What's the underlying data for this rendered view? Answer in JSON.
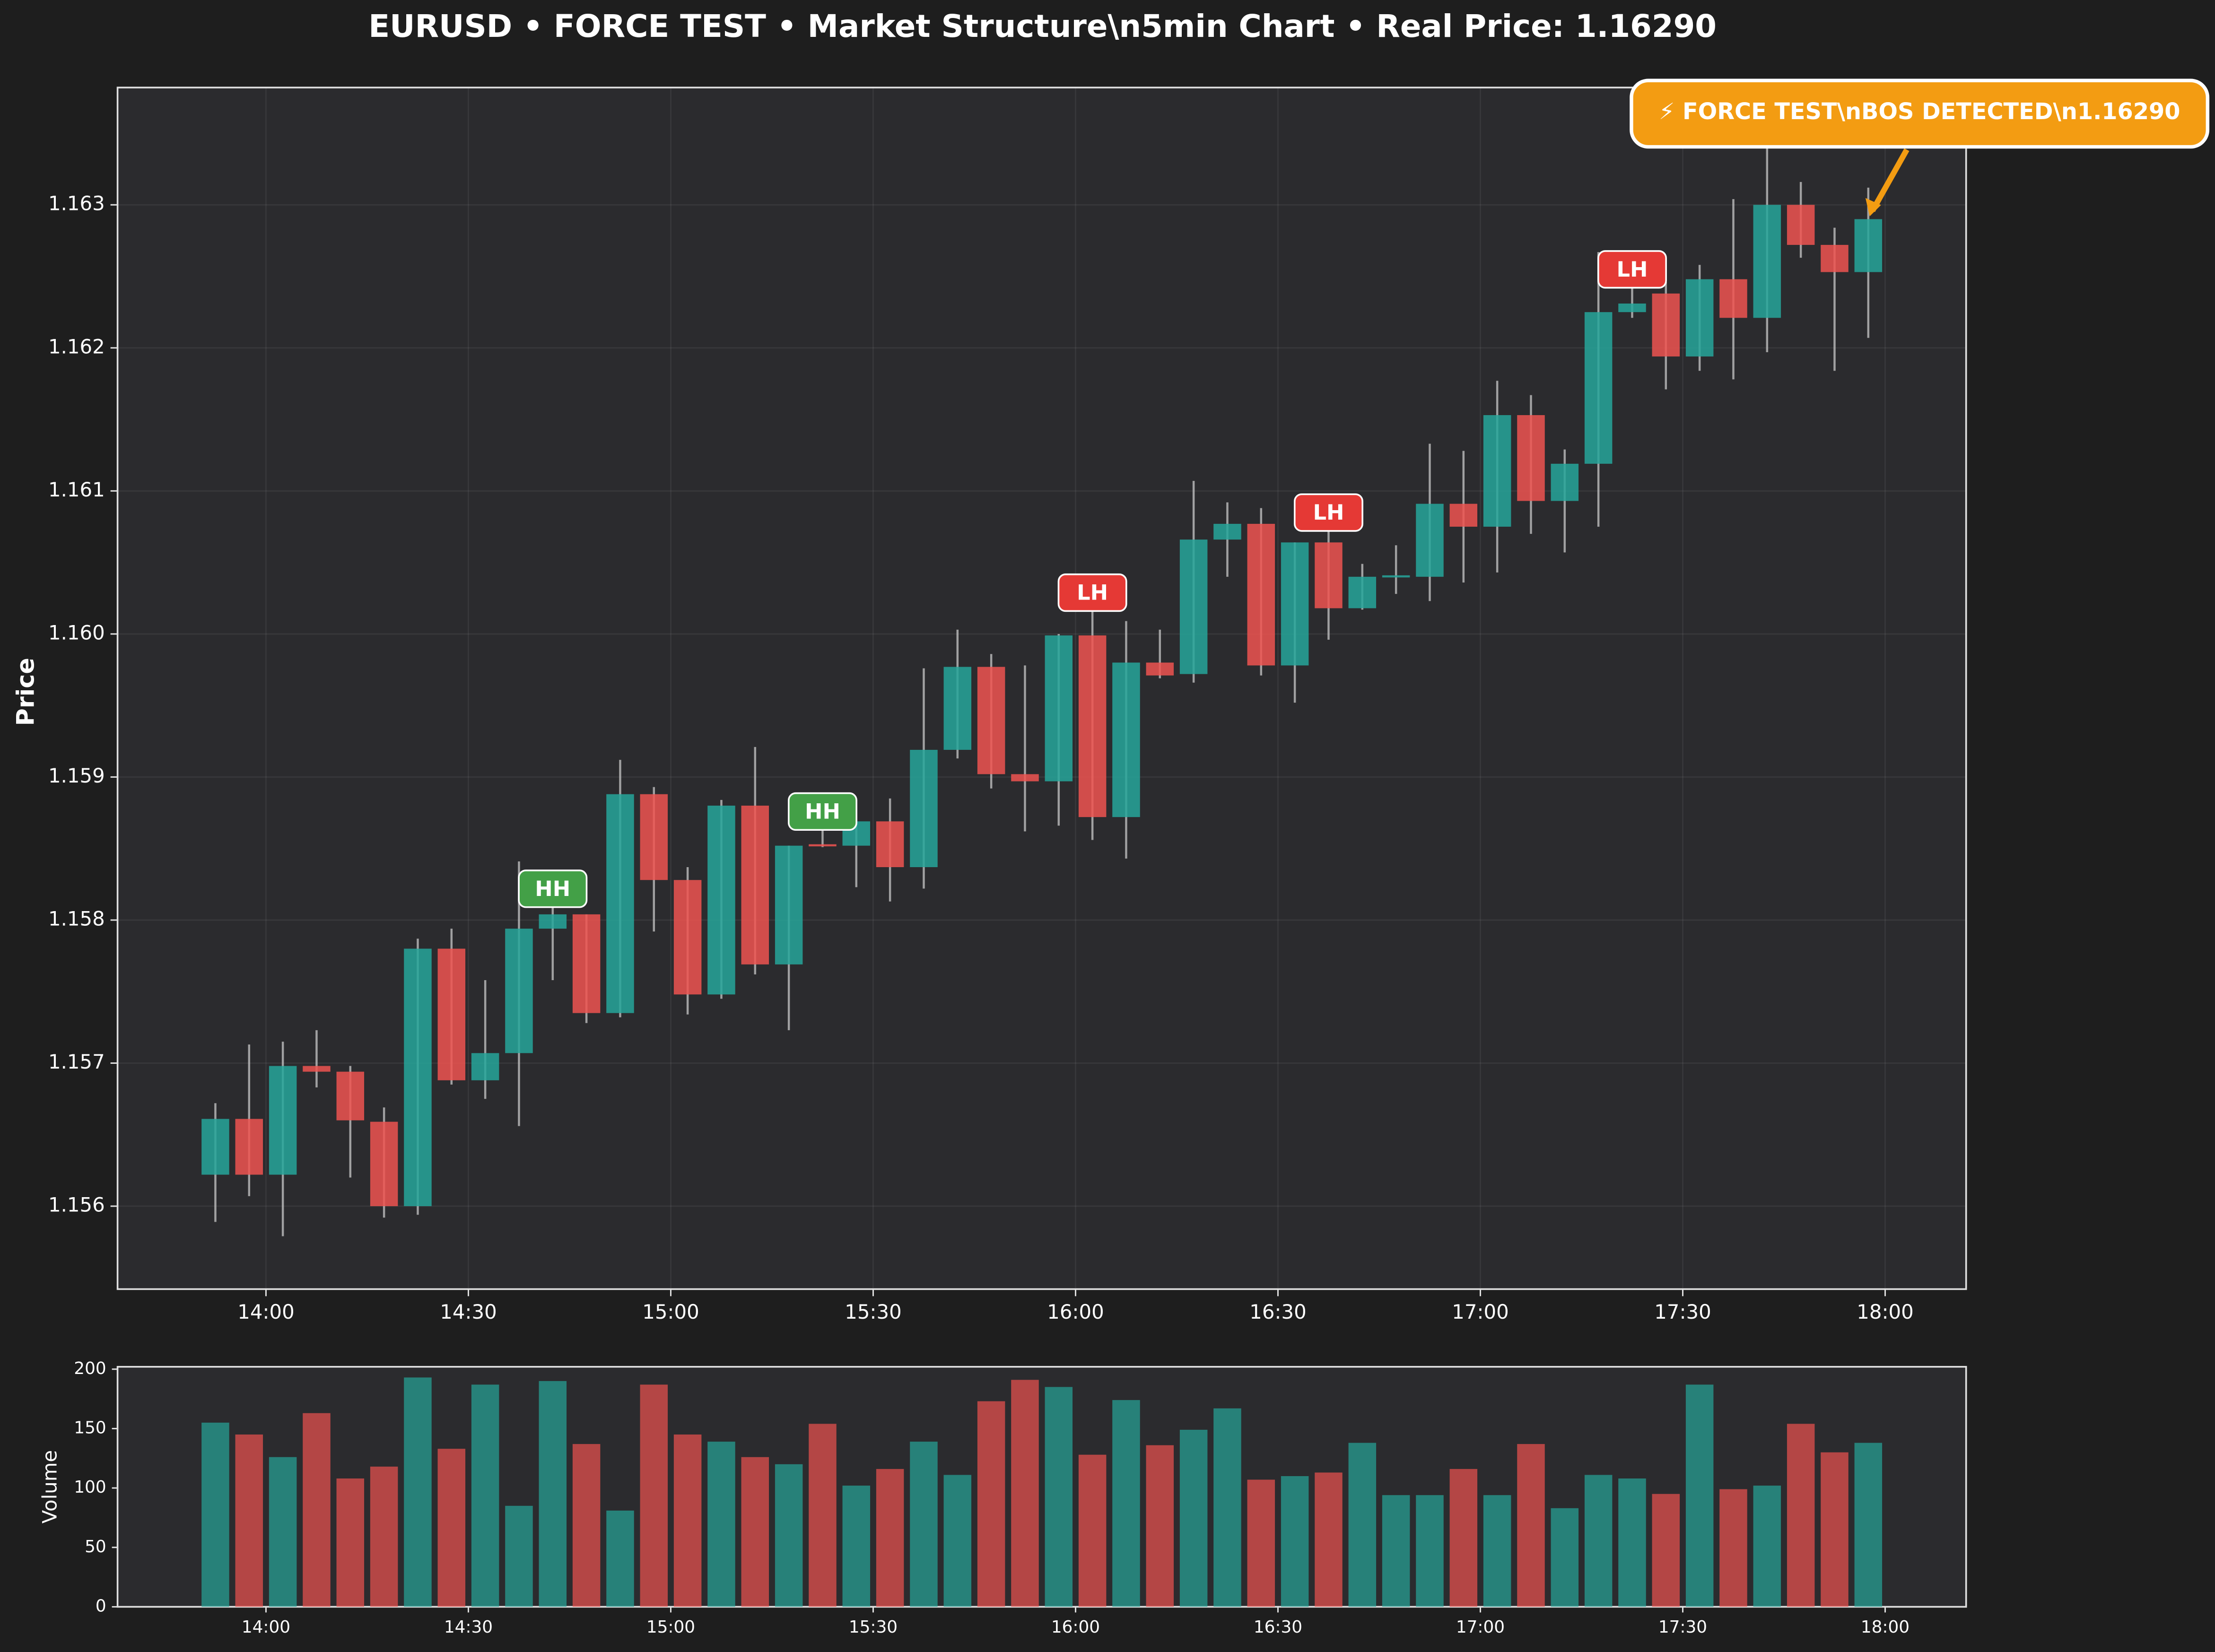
{
  "chart_data": {
    "type": "candlestick",
    "title": "EURUSD • FORCE TEST • Market Structure\\n5min Chart • Real Price: 1.16290",
    "ylabel": "Price",
    "x": [
      832.5,
      837.5,
      842.5,
      847.5,
      852.5,
      857.5,
      862.5,
      867.5,
      872.5,
      877.5,
      882.5,
      887.5,
      892.5,
      897.5,
      902.5,
      907.5,
      912.5,
      917.5,
      922.5,
      927.5,
      932.5,
      937.5,
      942.5,
      947.5,
      952.5,
      957.5,
      962.5,
      967.5,
      972.5,
      977.5,
      982.5,
      987.5,
      992.5,
      997.5,
      1002.5,
      1007.5,
      1012.5,
      1017.5,
      1022.5,
      1027.5,
      1032.5,
      1037.5,
      1042.5,
      1047.5,
      1052.5,
      1057.5,
      1062.5,
      1067.5,
      1072.5,
      1077.5
    ],
    "open": [
      1.15622,
      1.15661,
      1.15622,
      1.15698,
      1.15694,
      1.15659,
      1.156,
      1.1578,
      1.15688,
      1.15707,
      1.15794,
      1.15804,
      1.15735,
      1.15888,
      1.15828,
      1.15748,
      1.1588,
      1.15769,
      1.15853,
      1.15852,
      1.15869,
      1.15837,
      1.15919,
      1.15977,
      1.15902,
      1.15897,
      1.15999,
      1.15872,
      1.1598,
      1.15972,
      1.16066,
      1.16077,
      1.15978,
      1.16064,
      1.16018,
      1.1604,
      1.1604,
      1.16091,
      1.16075,
      1.16153,
      1.16093,
      1.16119,
      1.16225,
      1.16238,
      1.16194,
      1.16248,
      1.16221,
      1.163,
      1.16272,
      1.16253
    ],
    "high": [
      1.15672,
      1.15713,
      1.15715,
      1.15723,
      1.15698,
      1.15669,
      1.15787,
      1.15794,
      1.15758,
      1.15841,
      1.15812,
      1.15804,
      1.15912,
      1.15893,
      1.15837,
      1.15884,
      1.15921,
      1.15852,
      1.15866,
      1.15869,
      1.15885,
      1.15976,
      1.16003,
      1.15986,
      1.15978,
      1.16,
      1.16019,
      1.16009,
      1.16003,
      1.16107,
      1.16092,
      1.16088,
      1.16064,
      1.16075,
      1.16049,
      1.16062,
      1.16133,
      1.16128,
      1.16177,
      1.16167,
      1.16129,
      1.16267,
      1.16245,
      1.16246,
      1.16258,
      1.16304,
      1.16349,
      1.16316,
      1.16284,
      1.16312
    ],
    "low": [
      1.15589,
      1.15607,
      1.15579,
      1.15683,
      1.1562,
      1.15592,
      1.15594,
      1.15685,
      1.15675,
      1.15656,
      1.15758,
      1.15728,
      1.15732,
      1.15792,
      1.15734,
      1.15745,
      1.15762,
      1.15723,
      1.15851,
      1.15823,
      1.15813,
      1.15822,
      1.15913,
      1.15892,
      1.15862,
      1.15866,
      1.15856,
      1.15843,
      1.15969,
      1.15966,
      1.1604,
      1.15971,
      1.15952,
      1.15996,
      1.16017,
      1.16028,
      1.16023,
      1.16036,
      1.16043,
      1.1607,
      1.16057,
      1.16075,
      1.16221,
      1.16171,
      1.16184,
      1.16178,
      1.16197,
      1.16263,
      1.16184,
      1.16207
    ],
    "close": [
      1.15661,
      1.15622,
      1.15698,
      1.15694,
      1.1566,
      1.156,
      1.1578,
      1.15688,
      1.15707,
      1.15794,
      1.15804,
      1.15735,
      1.15888,
      1.15828,
      1.15748,
      1.1588,
      1.15769,
      1.15852,
      1.15852,
      1.15869,
      1.15837,
      1.15919,
      1.15977,
      1.15902,
      1.15897,
      1.15999,
      1.15872,
      1.1598,
      1.15971,
      1.16066,
      1.16077,
      1.15978,
      1.16064,
      1.16018,
      1.1604,
      1.16041,
      1.16091,
      1.16075,
      1.16153,
      1.16093,
      1.16119,
      1.16225,
      1.16231,
      1.16194,
      1.16248,
      1.16221,
      1.163,
      1.16272,
      1.16253,
      1.1629
    ],
    "structure": [
      null,
      null,
      null,
      null,
      null,
      null,
      null,
      null,
      null,
      null,
      "HH",
      null,
      null,
      null,
      null,
      null,
      null,
      null,
      "HH",
      null,
      null,
      null,
      null,
      null,
      null,
      null,
      "LH",
      null,
      null,
      null,
      null,
      null,
      null,
      "LH",
      null,
      null,
      null,
      null,
      null,
      null,
      null,
      null,
      "LH",
      null,
      null,
      null,
      null,
      null,
      null,
      null
    ],
    "structure_colors": {
      "HH": "#43a047",
      "LH": "#e53935"
    },
    "up_color": "#26a69a",
    "down_color": "#ef5350",
    "wick_color": "#c8c8c8",
    "xlim": [
      818,
      1092
    ],
    "xticks": [
      {
        "value": 840,
        "label": "14:00"
      },
      {
        "value": 870,
        "label": "14:30"
      },
      {
        "value": 900,
        "label": "15:00"
      },
      {
        "value": 930,
        "label": "15:30"
      },
      {
        "value": 960,
        "label": "16:00"
      },
      {
        "value": 990,
        "label": "16:30"
      },
      {
        "value": 1020,
        "label": "17:00"
      },
      {
        "value": 1050,
        "label": "17:30"
      },
      {
        "value": 1080,
        "label": "18:00"
      }
    ],
    "ylim": [
      1.15542,
      1.16382
    ],
    "yticks": [
      1.156,
      1.157,
      1.158,
      1.159,
      1.16,
      1.161,
      1.162,
      1.163
    ],
    "ytick_labels": [
      "1.156",
      "1.157",
      "1.158",
      "1.159",
      "1.160",
      "1.161",
      "1.162",
      "1.163"
    ],
    "grid": true,
    "annotation": {
      "text": "⚡ FORCE TEST\\nBOS DETECTED\\n1.16290",
      "color": "#f39c12"
    },
    "volume": {
      "ylabel": "Volume",
      "values": [
        155,
        145,
        126,
        163,
        108,
        118,
        193,
        133,
        187,
        85,
        190,
        137,
        81,
        187,
        145,
        139,
        126,
        120,
        154,
        102,
        116,
        139,
        111,
        173,
        191,
        185,
        128,
        174,
        136,
        149,
        167,
        107,
        110,
        113,
        138,
        94,
        94,
        116,
        94,
        137,
        83,
        111,
        108,
        95,
        187,
        99,
        102,
        154,
        130,
        138
      ],
      "ylim": [
        0,
        202
      ],
      "yticks": [
        0,
        50,
        100,
        150,
        200
      ]
    }
  }
}
